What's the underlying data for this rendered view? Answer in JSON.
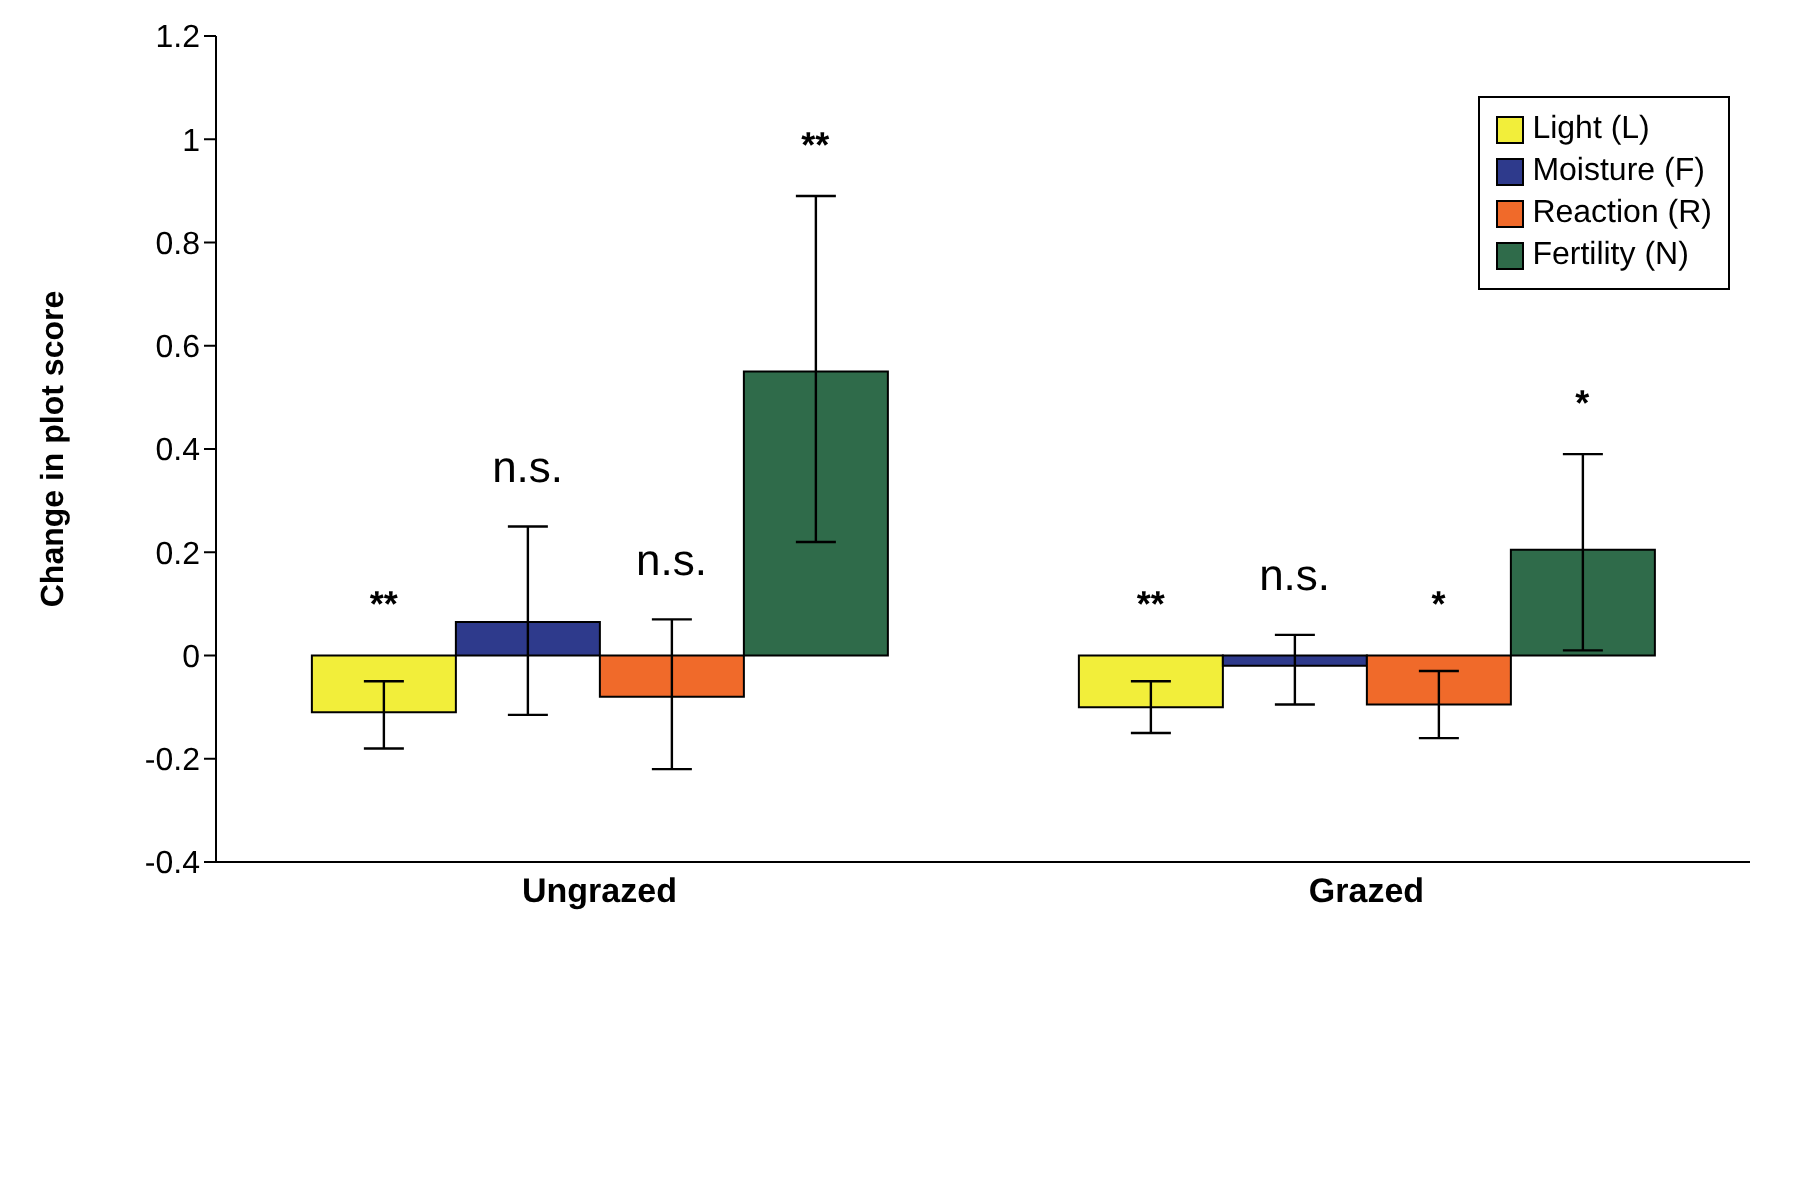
{
  "chart_data": {
    "type": "bar",
    "ylabel": "Change in plot score",
    "categories": [
      "Ungrazed",
      "Grazed"
    ],
    "series": [
      {
        "name": "Light (L)",
        "color": "#f2ee3a",
        "values": [
          -0.11,
          -0.1
        ],
        "errors": [
          [
            -0.18,
            -0.05
          ],
          [
            -0.15,
            -0.05
          ]
        ]
      },
      {
        "name": "Moisture (F)",
        "color": "#2e3a8c",
        "values": [
          0.065,
          -0.02
        ],
        "errors": [
          [
            -0.115,
            0.25
          ],
          [
            -0.095,
            0.04
          ]
        ]
      },
      {
        "name": "Reaction (R)",
        "color": "#f06a2a",
        "values": [
          -0.08,
          -0.095
        ],
        "errors": [
          [
            -0.22,
            0.07
          ],
          [
            -0.16,
            -0.03
          ]
        ]
      },
      {
        "name": "Fertility (N)",
        "color": "#2f6b4a",
        "values": [
          0.55,
          0.205
        ],
        "errors": [
          [
            0.22,
            0.89
          ],
          [
            0.01,
            0.39
          ]
        ]
      }
    ],
    "ylim": [
      -0.4,
      1.2
    ],
    "yticks": [
      -0.4,
      -0.2,
      0,
      0.2,
      0.4,
      0.6,
      0.8,
      1,
      1.2
    ],
    "grid": false,
    "legend": "top right",
    "annotations": [
      "**",
      "n.s.",
      "n.s.",
      "**",
      "**",
      "n.s.",
      "*",
      "*"
    ]
  }
}
